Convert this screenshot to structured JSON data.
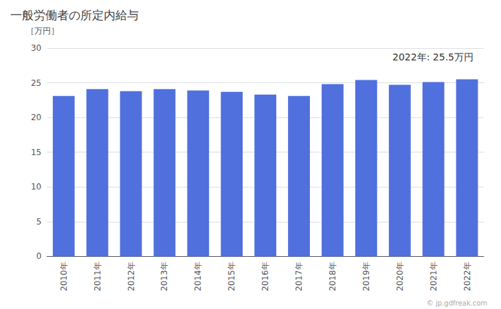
{
  "chart_data": {
    "type": "bar",
    "title": "一般労働者の所定内給与",
    "ylabel": "［万円］",
    "annotations": [
      "2022年: 25.5万円",
      "© jp.gdfreak.com"
    ],
    "categories": [
      "2010年",
      "2011年",
      "2012年",
      "2013年",
      "2014年",
      "2015年",
      "2016年",
      "2017年",
      "2018年",
      "2019年",
      "2020年",
      "2021年",
      "2022年"
    ],
    "values": [
      23.1,
      24.1,
      23.8,
      24.1,
      23.9,
      23.7,
      23.3,
      23.1,
      24.8,
      25.4,
      24.7,
      25.1,
      25.5
    ],
    "ylim": [
      0,
      30
    ],
    "yticks": [
      0,
      5,
      10,
      15,
      20,
      25,
      30
    ],
    "grid": true
  }
}
